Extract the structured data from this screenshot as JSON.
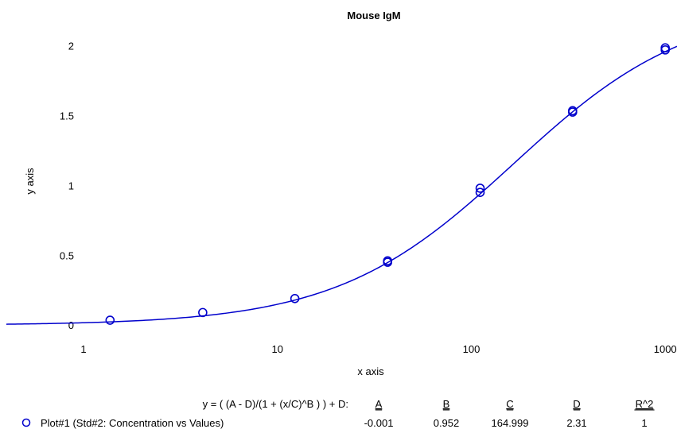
{
  "chart_data": {
    "type": "scatter",
    "title": "Mouse IgM",
    "xlabel": "x axis",
    "ylabel": "y axis",
    "x_scale": "log",
    "xlim": [
      0.4,
      1150
    ],
    "ylim": [
      -0.05,
      2.1
    ],
    "x_ticks": [
      1,
      10,
      100,
      1000
    ],
    "x_tick_labels": [
      "1",
      "10",
      "100",
      "1000"
    ],
    "y_ticks": [
      0,
      0.5,
      1,
      1.5,
      2
    ],
    "y_tick_labels": [
      "0",
      "0.5",
      "1",
      "1.5",
      "2"
    ],
    "grid": false,
    "series": [
      {
        "name": "Plot#1 (Std#2: Concentration vs Values)",
        "color": "#0000cc",
        "marker": "circle",
        "x": [
          1.37,
          4.12,
          12.3,
          37.0,
          37.0,
          111,
          111,
          333,
          333,
          1000,
          1000
        ],
        "y": [
          0.035,
          0.09,
          0.19,
          0.45,
          0.46,
          0.95,
          0.98,
          1.525,
          1.535,
          1.97,
          1.985
        ]
      }
    ],
    "fit": {
      "equation": "y = ( (A - D)/(1 + (x/C)^B ) ) + D:",
      "parameter_names": [
        "A",
        "B",
        "C",
        "D",
        "R^2"
      ],
      "parameter_values": [
        "-0.001",
        "0.952",
        "164.999",
        "2.31",
        "1"
      ],
      "params": {
        "A": -0.001,
        "B": 0.952,
        "C": 164.999,
        "D": 2.31
      },
      "color": "#0000cc"
    },
    "legend_position": "bottom"
  }
}
